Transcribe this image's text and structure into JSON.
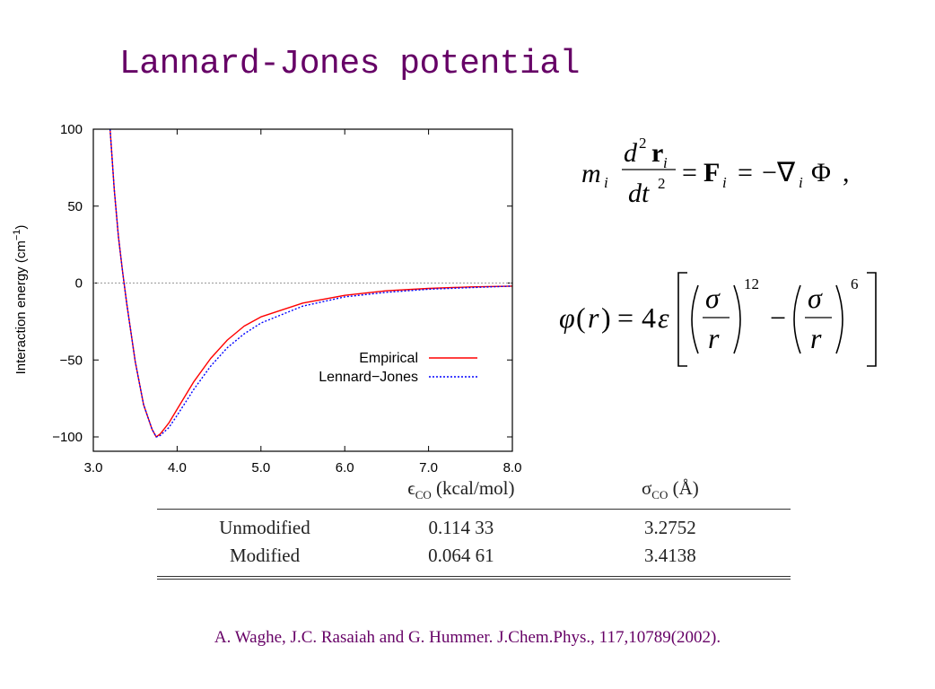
{
  "slide": {
    "title": "Lannard-Jones potential",
    "citation": "A. Waghe, J.C. Rasaiah and G. Hummer. J.Chem.Phys., 117,10789(2002).",
    "colors": {
      "title": "#660066",
      "empirical": "#ff0000",
      "lennard_jones": "#0000ff"
    }
  },
  "chart_data": {
    "type": "line",
    "title": "",
    "xlabel": "",
    "ylabel": "Interaction energy (cm",
    "ylabel_superscript": "−1",
    "ylabel_suffix": ")",
    "xlim": [
      3.0,
      8.0
    ],
    "ylim": [
      -110,
      100
    ],
    "x_ticks": [
      3.0,
      4.0,
      5.0,
      6.0,
      7.0,
      8.0
    ],
    "x_tick_labels": [
      "3.0",
      "4.0",
      "5.0",
      "6.0",
      "7.0",
      "8.0"
    ],
    "y_ticks": [
      100,
      50,
      0,
      -50,
      -100
    ],
    "y_tick_labels": [
      "100",
      "50",
      "0",
      "−50",
      "−100"
    ],
    "zero_line": true,
    "grid": false,
    "legend": "right",
    "series": [
      {
        "name": "Empirical",
        "style": "solid",
        "color": "#ff0000",
        "x": [
          3.2,
          3.25,
          3.3,
          3.35,
          3.4,
          3.5,
          3.6,
          3.7,
          3.75,
          3.8,
          3.9,
          4.0,
          4.2,
          4.4,
          4.6,
          4.8,
          5.0,
          5.5,
          6.0,
          6.5,
          7.0,
          7.5,
          8.0
        ],
        "y": [
          100,
          61,
          30,
          7,
          -14,
          -51,
          -79,
          -95,
          -100,
          -98,
          -91,
          -82,
          -64,
          -49,
          -37,
          -28,
          -22,
          -13,
          -8,
          -5,
          -3.5,
          -2.5,
          -2
        ]
      },
      {
        "name": "Lennard−Jones",
        "style": "dotted",
        "color": "#0000ff",
        "x": [
          3.2,
          3.25,
          3.3,
          3.35,
          3.4,
          3.5,
          3.6,
          3.7,
          3.75,
          3.8,
          3.9,
          4.0,
          4.2,
          4.4,
          4.6,
          4.8,
          5.0,
          5.5,
          6.0,
          6.5,
          7.0,
          7.5,
          8.0
        ],
        "y": [
          100,
          61,
          30,
          7,
          -14,
          -51,
          -79,
          -95,
          -100,
          -99,
          -94,
          -86,
          -69,
          -54,
          -42,
          -33,
          -26,
          -15,
          -9,
          -6,
          -4,
          -3,
          -2
        ]
      }
    ]
  },
  "equations": {
    "newton": {
      "m": "m",
      "i": "i",
      "d": "d",
      "two": "2",
      "r": "r",
      "dt": "dt",
      "eq": "=",
      "F": "F",
      "minus": "−",
      "nabla": "∇",
      "Phi": "Φ",
      "comma": ","
    },
    "lj": {
      "phi": "φ",
      "lparen": "(",
      "r": "r",
      "rparen": ")",
      "eq": "=",
      "four": "4",
      "eps": "ε",
      "sigma": "σ",
      "p12": "12",
      "p6": "6",
      "minus": "−"
    }
  },
  "table": {
    "headers": {
      "name": "",
      "eps_symbol": "ϵ",
      "eps_sub": "CO",
      "eps_unit": "(kcal/mol)",
      "sigma_symbol": "σ",
      "sigma_sub": "CO",
      "sigma_unit": "(Å)"
    },
    "rows": [
      {
        "name": "Unmodified",
        "epsilon": "0.114 33",
        "sigma": "3.2752"
      },
      {
        "name": "Modified",
        "epsilon": "0.064 61",
        "sigma": "3.4138"
      }
    ]
  }
}
